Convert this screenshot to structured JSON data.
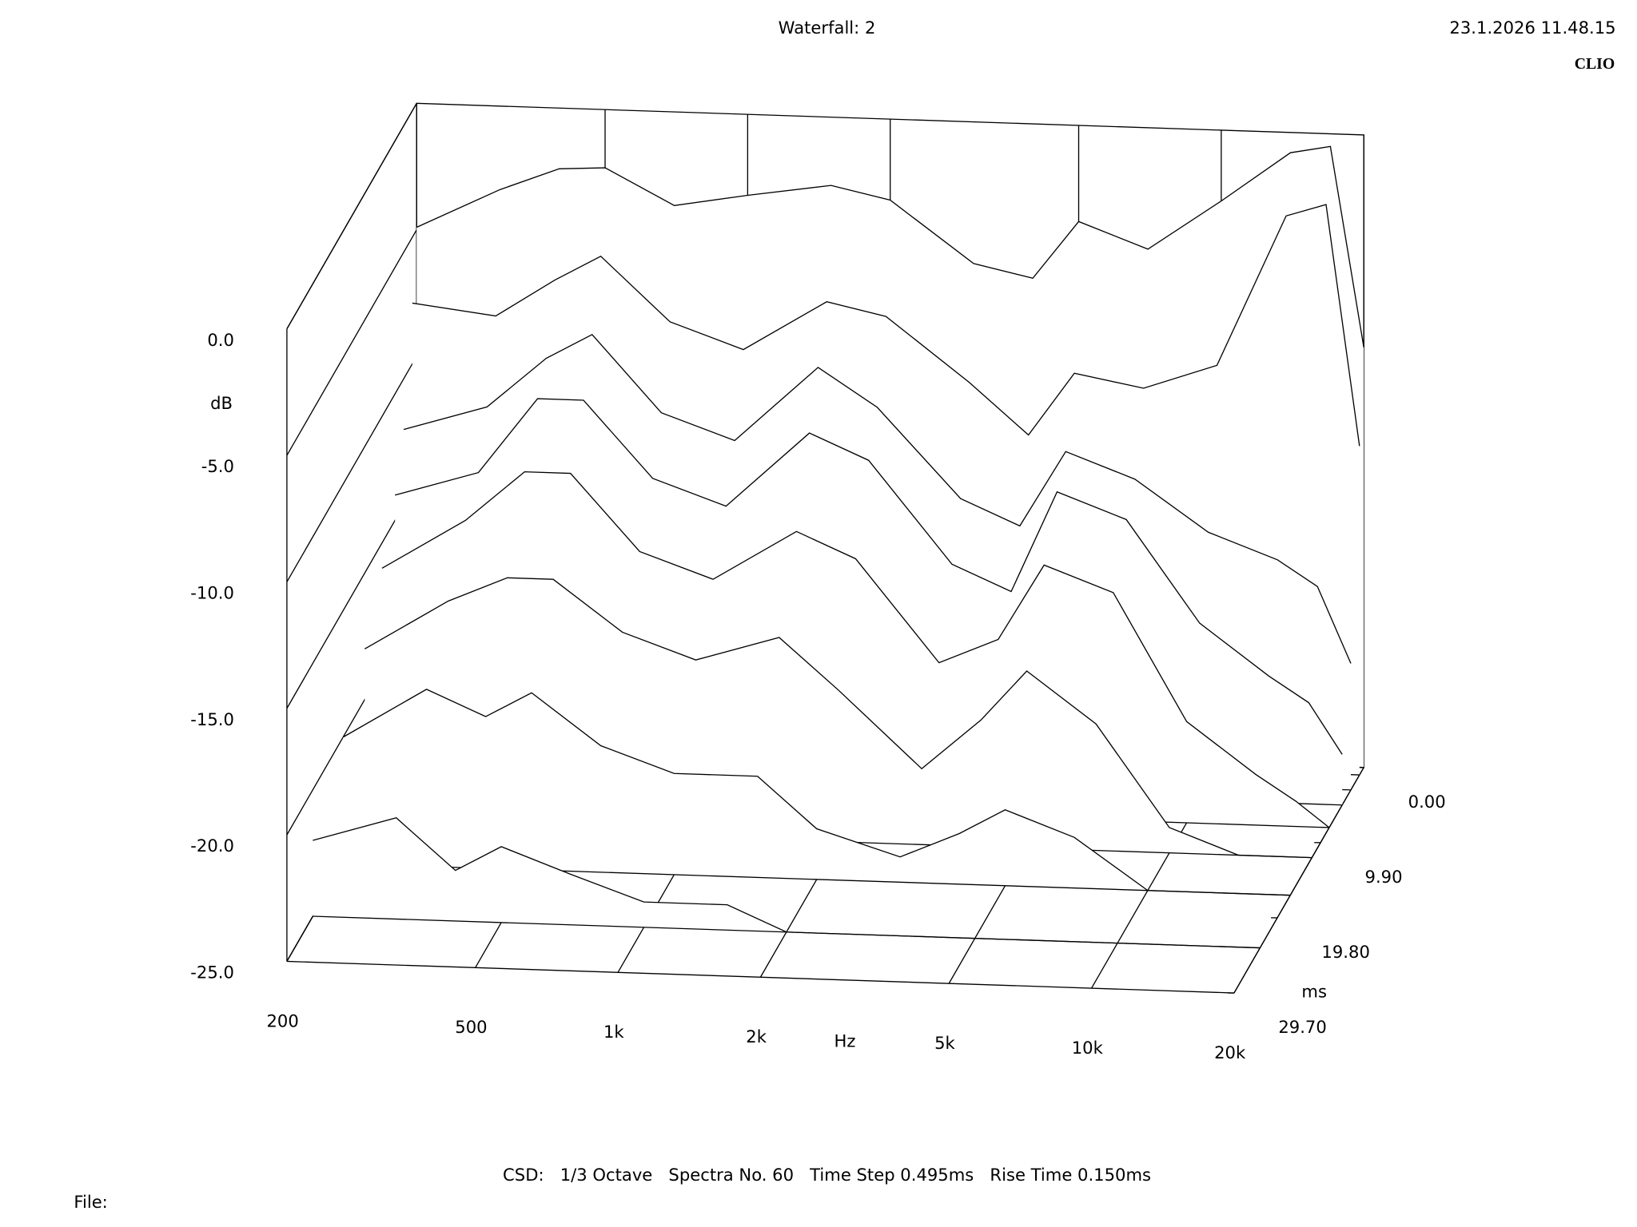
{
  "chart_data": {
    "type": "waterfall",
    "title": "Waterfall: 2",
    "timestamp": "23.1.2026 11.48.15",
    "brand": "CLIO",
    "footer": "CSD:   1/3 Octave   Spectra No. 60   Time Step 0.495ms   Rise Time 0.150ms",
    "file_label": "File:",
    "x_label": "Hz",
    "y_label": "ms",
    "z_label": "dB",
    "color": "#000000",
    "log_x": true,
    "xlim": [
      200,
      20000
    ],
    "xticks": [
      200,
      500,
      {
        "value": 1000,
        "label": "1k"
      },
      {
        "value": 2000,
        "label": "2k"
      },
      {
        "value": 5000,
        "label": "5k"
      },
      {
        "value": 10000,
        "label": "10k"
      },
      {
        "value": 20000,
        "label": "20k"
      }
    ],
    "ylim": [
      0,
      29.7
    ],
    "yticks": [
      {
        "value": 0,
        "label": "0.00"
      },
      {
        "value": 9.9,
        "label": "9.90"
      },
      {
        "value": 19.8,
        "label": "19.80"
      },
      {
        "value": 29.7,
        "label": "29.70"
      }
    ],
    "zlim": [
      -25,
      0
    ],
    "zticks": [
      {
        "value": -25,
        "label": "-25.0"
      },
      {
        "value": -20,
        "label": "-20.0"
      },
      {
        "value": -15,
        "label": "-15.0"
      },
      {
        "value": -10,
        "label": "-10.0"
      },
      {
        "value": -5,
        "label": "-5.0"
      },
      {
        "value": 0,
        "label": "0.0"
      }
    ],
    "frequencies": [
      200,
      300,
      400,
      500,
      700,
      1000,
      1500,
      2000,
      3000,
      4000,
      5000,
      7000,
      10000,
      14000,
      17000,
      20000
    ],
    "series": [
      {
        "time": 0,
        "values": [
          -4.9,
          -3.3,
          -2.4,
          -2.3,
          -3.7,
          -3.2,
          -2.7,
          -3.2,
          -5.6,
          -6.1,
          -3.8,
          -4.8,
          -2.8,
          -0.8,
          -0.5,
          -8.4
        ]
      },
      {
        "time": 0.99,
        "values": [
          -7.6,
          -8,
          -6.5,
          -5.5,
          -8,
          -9,
          -7,
          -7.5,
          -10,
          -12,
          -9.5,
          -10,
          -9,
          -3,
          -2.5,
          -12
        ]
      },
      {
        "time": 2.97,
        "values": [
          -12,
          -11,
          -9,
          -8,
          -11,
          -12,
          -9,
          -10.5,
          -14,
          -15,
          -12,
          -13,
          -15,
          -16,
          -17,
          -20
        ]
      },
      {
        "time": 4.95,
        "values": [
          -14,
          -13,
          -10,
          -10,
          -13,
          -14,
          -11,
          -12,
          -16,
          -17,
          -13,
          -14,
          -18,
          -20,
          -21,
          -23
        ]
      },
      {
        "time": 7.92,
        "values": [
          -16,
          -14,
          -12,
          -12,
          -15,
          -16,
          -14,
          -15,
          -19,
          -18,
          -15,
          -16,
          -21,
          -23,
          -24,
          -25
        ]
      },
      {
        "time": 11.88,
        "values": [
          -18,
          -16,
          -15,
          -15,
          -17,
          -18,
          -17,
          -19,
          -22,
          -20,
          -18,
          -20,
          -24,
          -25,
          -25,
          -25
        ]
      },
      {
        "time": 16.83,
        "values": [
          -20,
          -18,
          -19,
          -18,
          -20,
          -21,
          -21,
          -23,
          -24,
          -23,
          -22,
          -23,
          -25,
          -25,
          -25,
          -25
        ]
      },
      {
        "time": 23.76,
        "values": [
          -22,
          -21,
          -23,
          -22,
          -23,
          -24,
          -24,
          -25,
          -25,
          -25,
          -25,
          -25,
          -25,
          -25,
          -25,
          -25
        ]
      }
    ]
  }
}
